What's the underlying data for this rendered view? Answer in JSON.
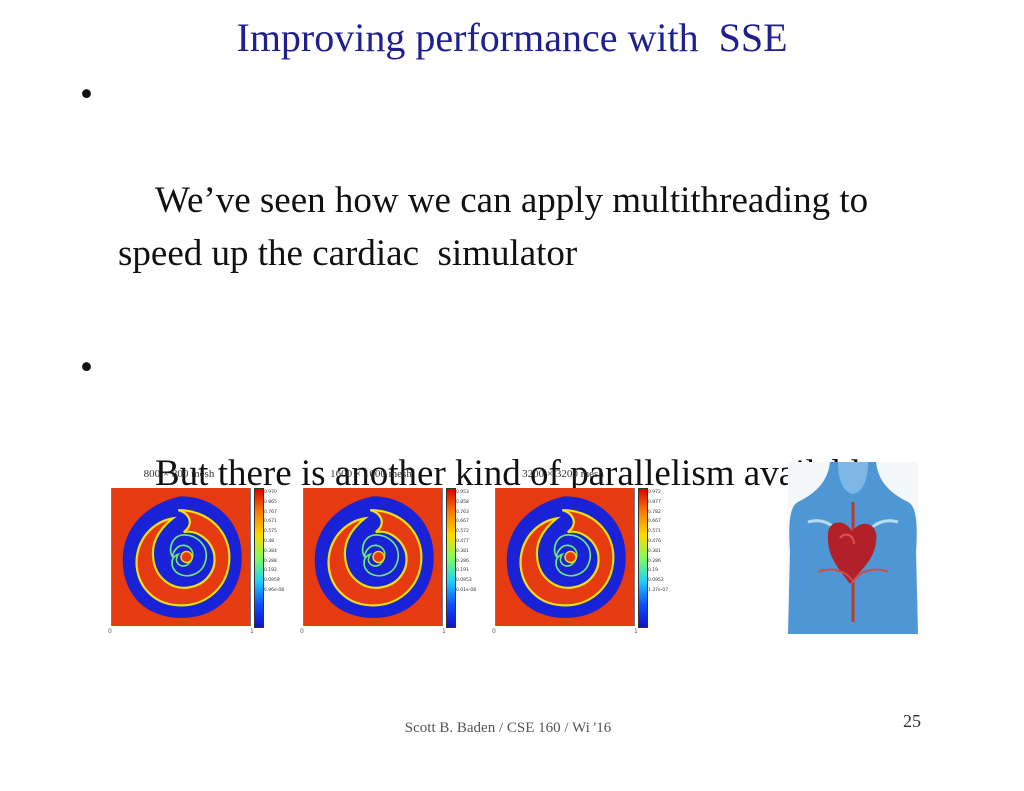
{
  "title": "Improving performance with  SSE",
  "bullets": [
    "We’ve seen how we can apply multithreading to speed up the cardiac  simulator",
    "But there is another kind of parallelism available to us:  SSE"
  ],
  "bullet_symbol": "•",
  "figures": [
    {
      "title": "800 × 800 mesh",
      "ticks": [
        "0.970",
        "0.865",
        "0.767",
        "0.671",
        "0.575",
        "0.48",
        "0.384",
        "0.288",
        "0.192",
        "0.0959",
        "6.96e-08"
      ],
      "x_start": "0",
      "x_end": "1",
      "y_top": "1"
    },
    {
      "title": "1600 × 1600 mesh",
      "ticks": [
        "0.953",
        "0.858",
        "0.763",
        "0.667",
        "0.572",
        "0.477",
        "0.381",
        "0.286",
        "0.191",
        "0.0953",
        "6.01e-08"
      ],
      "x_start": "0",
      "x_end": "1",
      "y_top": "1"
    },
    {
      "title": "3200 × 3200 mesh",
      "ticks": [
        "0.972",
        "0.877",
        "0.782",
        "0.667",
        "0.571",
        "0.476",
        "0.381",
        "0.286",
        "0.19",
        "0.0952",
        "1.37e-07"
      ],
      "x_start": "0",
      "x_end": "1",
      "y_top": "1"
    }
  ],
  "heart_image_icon": "human-torso-heart-illustration",
  "footer": "Scott B. Baden / CSE 160 / Wi '16",
  "page_number": "25",
  "colors": {
    "title": "#1f1f8f",
    "sim_red": "#e63a10",
    "sim_blue": "#1a22d8",
    "sim_yellow": "#f0e010"
  }
}
